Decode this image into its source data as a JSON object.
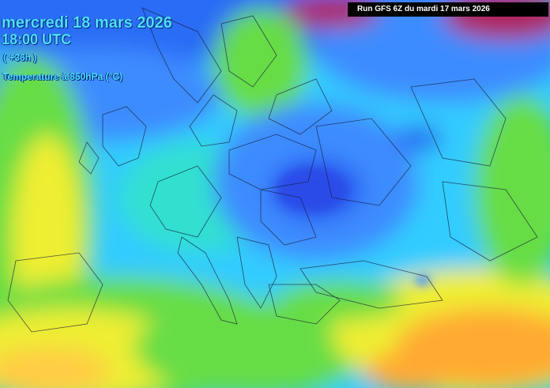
{
  "header": {
    "date": "mercredi 18 mars 2026",
    "time": "18:00 UTC",
    "lead": "( +36h )",
    "parameter": "Temperature à 850hPa (°C)",
    "run": "Run GFS 6Z  du mardi 17 mars 2026"
  },
  "colors": {
    "deep_blue": "#2a5cf0",
    "blue": "#3c8cff",
    "cyan": "#33ccff",
    "teal": "#33e0d0",
    "green": "#66dd44",
    "yellow": "#eeee33",
    "orange": "#ffaa33",
    "magenta": "#b0205a"
  }
}
